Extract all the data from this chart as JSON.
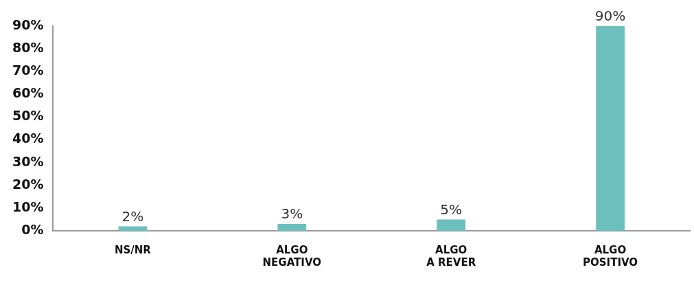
{
  "chart_data": {
    "type": "bar",
    "categories": [
      "NS/NR",
      "ALGO\nNEGATIVO",
      "ALGO\nA REVER",
      "ALGO\nPOSITIVO"
    ],
    "values": [
      2,
      3,
      5,
      90
    ],
    "color": "#6bbfbc",
    "value_labels": [
      "2%",
      "3%",
      "5%",
      "90%"
    ],
    "ylim": [
      0,
      90
    ],
    "yticks": [
      {
        "value": 0,
        "label": "0%"
      },
      {
        "value": 10,
        "label": "10%"
      },
      {
        "value": 20,
        "label": "20%"
      },
      {
        "value": 30,
        "label": "30%"
      },
      {
        "value": 40,
        "label": "40%"
      },
      {
        "value": 50,
        "label": "50%"
      },
      {
        "value": 60,
        "label": "60%"
      },
      {
        "value": 70,
        "label": "70%"
      },
      {
        "value": 80,
        "label": "80%"
      },
      {
        "value": 90,
        "label": "90%"
      }
    ],
    "grid": false,
    "legend": false
  }
}
